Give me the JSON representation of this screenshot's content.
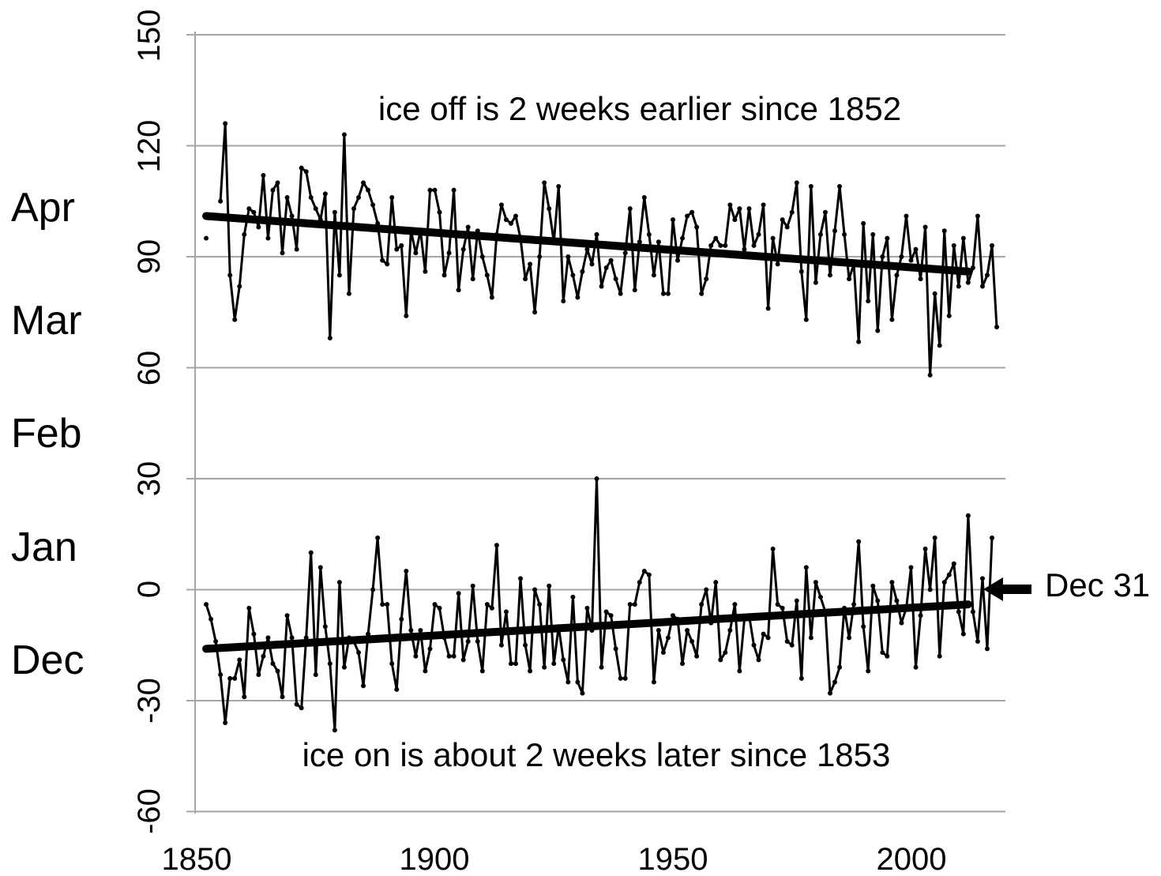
{
  "chart_data": {
    "type": "line",
    "title": "",
    "xlabel": "",
    "ylabel": "",
    "xlim": [
      1850,
      2010
    ],
    "ylim": [
      -60,
      150
    ],
    "x_ticks": [
      "1850",
      "1900",
      "1950",
      "2000"
    ],
    "y_ticks": [
      "150",
      "120",
      "90",
      "60",
      "30",
      "0",
      "-30",
      "-60"
    ],
    "month_labels": [
      "Apr",
      "Mar",
      "Feb",
      "Jan",
      "Dec"
    ],
    "grid": true,
    "annotations": {
      "ice_off": "ice off is 2 weeks earlier since 1852",
      "ice_on": "ice on is about 2 weeks later since 1853",
      "dec31": "Dec 31"
    },
    "series": [
      {
        "x_start": 1852,
        "values": [
          95,
          null,
          null,
          105,
          126,
          85,
          73,
          82,
          96,
          103,
          102,
          98,
          112,
          95,
          108,
          110,
          91,
          106,
          101,
          92,
          114,
          113,
          106,
          103,
          100,
          107,
          68,
          102,
          85,
          123,
          80,
          103,
          106,
          110,
          108,
          104,
          99,
          89,
          88,
          106,
          92,
          93,
          74,
          97,
          91,
          97,
          86,
          108,
          108,
          102,
          85,
          91,
          108,
          81,
          92,
          98,
          84,
          97,
          90,
          85,
          79,
          96,
          104,
          100,
          99,
          101,
          95,
          84,
          88,
          75,
          90,
          110,
          103,
          94,
          109,
          78,
          90,
          85,
          79,
          86,
          92,
          88,
          96,
          82,
          87,
          89,
          84,
          80,
          91,
          103,
          81,
          94,
          106,
          96,
          85,
          94,
          80,
          80,
          100,
          89,
          95,
          101,
          102,
          98,
          80,
          84,
          93,
          95,
          93,
          93,
          104,
          100,
          103,
          92,
          103,
          93,
          96,
          104,
          76,
          95,
          88,
          100,
          98,
          102,
          110,
          86,
          73,
          109,
          83,
          96,
          102,
          85,
          97,
          109,
          96,
          84,
          88,
          67,
          99,
          78,
          96,
          70,
          90,
          95,
          73,
          85,
          90,
          101,
          89,
          92,
          84,
          98,
          58,
          80,
          66,
          97,
          74,
          93,
          82,
          95,
          83,
          87,
          101,
          82,
          85,
          93,
          71
        ]
      },
      {
        "x_start": 1852,
        "values": [
          -4,
          -8,
          -14,
          -23,
          -36,
          -24,
          -24,
          -19,
          -29,
          -5,
          -12,
          -23,
          -18,
          -13,
          -20,
          -22,
          -29,
          -7,
          -13,
          -31,
          -32,
          -13,
          10,
          -23,
          6,
          -10,
          -20,
          -38,
          2,
          -21,
          -13,
          -14,
          -17,
          -26,
          -12,
          0,
          14,
          -4,
          -4,
          -20,
          -27,
          -8,
          5,
          -11,
          -18,
          -11,
          -22,
          -16,
          -4,
          -5,
          -13,
          -18,
          -18,
          -1,
          -19,
          -14,
          1,
          -14,
          -22,
          -4,
          -5,
          12,
          -15,
          -6,
          -20,
          -20,
          3,
          -15,
          -22,
          0,
          -4,
          -21,
          1,
          -20,
          -10,
          -19,
          -25,
          -2,
          -25,
          -28,
          -5,
          -11,
          30,
          -21,
          -6,
          -7,
          -16,
          -24,
          -24,
          -4,
          -4,
          2,
          5,
          4,
          -25,
          -11,
          -17,
          -13,
          -7,
          -8,
          -20,
          -11,
          -14,
          -18,
          -4,
          0,
          -9,
          2,
          -19,
          -17,
          -11,
          -4,
          -22,
          -8,
          -7,
          -15,
          -19,
          -12,
          -13,
          11,
          -4,
          -5,
          -14,
          -15,
          -3,
          -24,
          6,
          -13,
          2,
          -2,
          -6,
          -28,
          -25,
          -21,
          -5,
          -13,
          -4,
          13,
          -10,
          -22,
          1,
          -3,
          -17,
          -18,
          2,
          -3,
          -9,
          -5,
          6,
          -21,
          -7,
          11,
          0,
          14,
          -18,
          2,
          4,
          7,
          -6,
          -12,
          20,
          -6,
          -14,
          3,
          -16,
          14
        ]
      }
    ],
    "trend_lines": [
      {
        "from": [
          1852,
          101
        ],
        "to": [
          2012,
          86
        ]
      },
      {
        "from": [
          1852,
          -16
        ],
        "to": [
          2012,
          -4
        ]
      }
    ]
  }
}
